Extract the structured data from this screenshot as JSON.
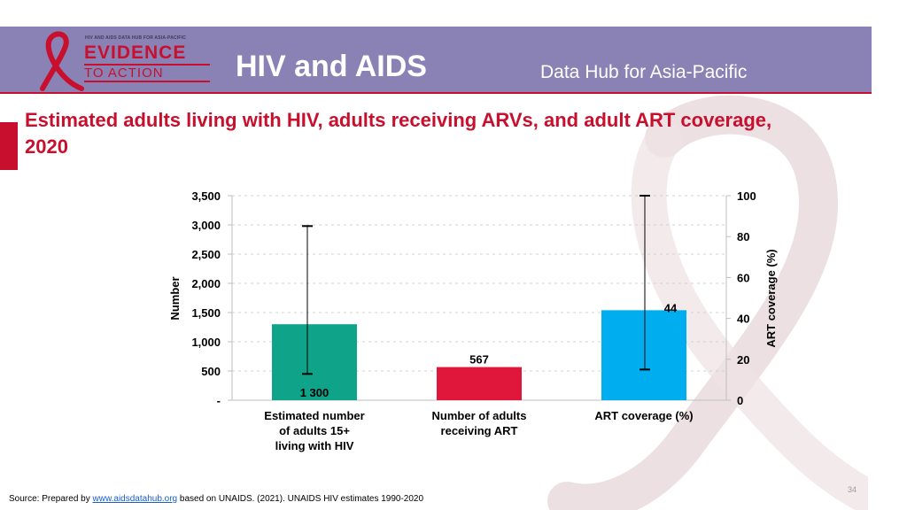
{
  "header": {
    "app_title": "HIV and AIDS",
    "subtitle": "Data Hub for Asia-Pacific",
    "logo_top_line": "HIV AND AIDS DATA HUB FOR ASIA-PACIFIC",
    "logo_evidence": "EVIDENCE",
    "logo_to_action": "TO ACTION",
    "band_color": "#8a82b4",
    "accent_color": "#c8102e"
  },
  "slide": {
    "title": "Estimated adults living with HIV, adults receiving ARVs, and adult ART coverage, 2020",
    "page_number": "34"
  },
  "footer": {
    "prefix": "Source: Prepared by",
    "link_text": "www.aidsdatahub.org",
    "suffix": "based on UNAIDS. (2021). UNAIDS HIV estimates 1990-2020"
  },
  "chart_data": {
    "type": "bar",
    "categories": [
      [
        "Estimated number",
        "of adults 15+",
        "living with HIV"
      ],
      [
        "Number of adults",
        "receiving ART"
      ],
      [
        "ART coverage (%)"
      ]
    ],
    "bars": [
      {
        "value": 1300,
        "axis": "left",
        "color": "#0fa38a",
        "label": "1 300",
        "error_low": 450,
        "error_high": 2980
      },
      {
        "value": 567,
        "axis": "left",
        "color": "#e0173a",
        "label": "567"
      },
      {
        "value": 44,
        "axis": "right",
        "color": "#00aeef",
        "label": "44",
        "error_low": 15,
        "error_high": 100
      }
    ],
    "ylabel_left": "Number",
    "ylabel_right": "ART coverage (%)",
    "ylim_left": [
      0,
      3500
    ],
    "ylim_right": [
      0,
      100
    ],
    "yticks_left": [
      {
        "value": 0,
        "label": "-"
      },
      {
        "value": 500,
        "label": "500"
      },
      {
        "value": 1000,
        "label": "1,000"
      },
      {
        "value": 1500,
        "label": "1,500"
      },
      {
        "value": 2000,
        "label": "2,000"
      },
      {
        "value": 2500,
        "label": "2,500"
      },
      {
        "value": 3000,
        "label": "3,000"
      },
      {
        "value": 3500,
        "label": "3,500"
      }
    ],
    "yticks_right": [
      {
        "value": 0,
        "label": "0"
      },
      {
        "value": 20,
        "label": "20"
      },
      {
        "value": 40,
        "label": "40"
      },
      {
        "value": 60,
        "label": "60"
      },
      {
        "value": 80,
        "label": "80"
      },
      {
        "value": 100,
        "label": "100"
      }
    ],
    "grid": true,
    "grid_style": "dashed"
  }
}
